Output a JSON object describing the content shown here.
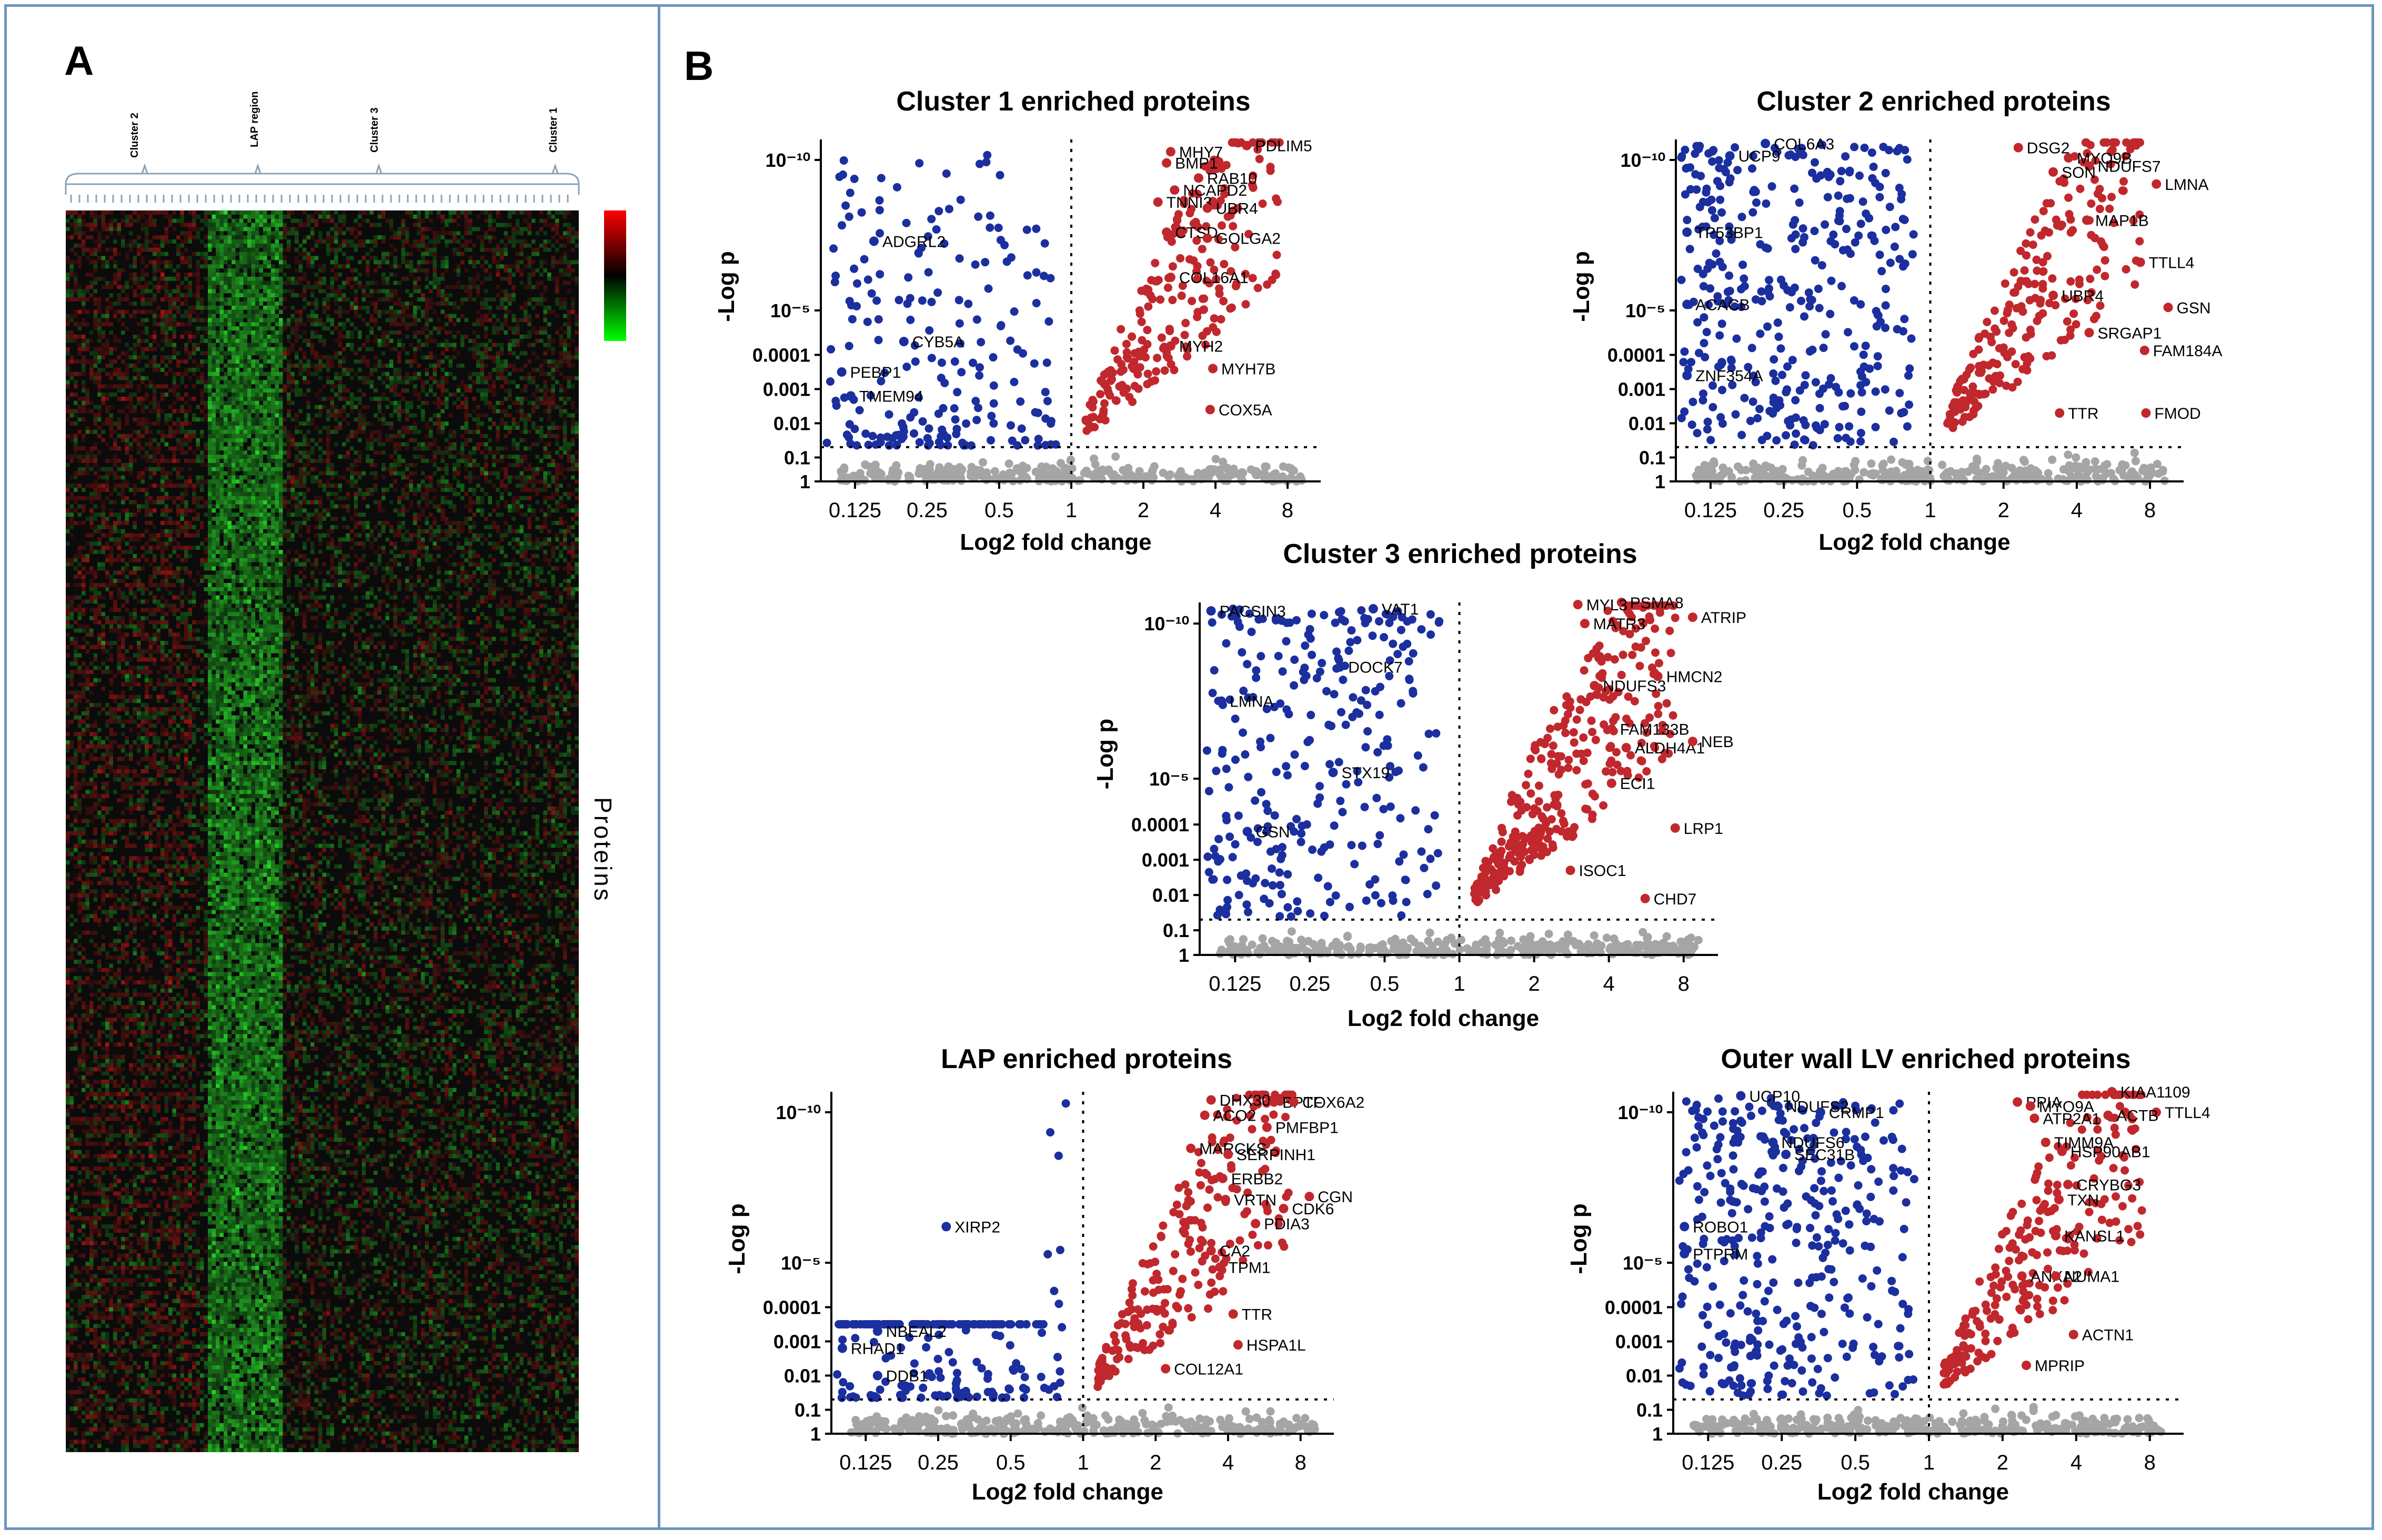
{
  "panel_a": {
    "letter": "A",
    "cluster_labels": [
      "Cluster 2",
      "LAP region",
      "Cluster 3",
      "Cluster 1"
    ],
    "row_axis_label": "Proteins",
    "color_scale": [
      "#ff0000",
      "#000000",
      "#00ff00"
    ]
  },
  "panel_b": {
    "letter": "B"
  },
  "colors": {
    "up": "#c0282d",
    "down": "#1b2f9e",
    "ns": "#a5a5a5",
    "frame": "#6f93bf"
  },
  "chart_data": [
    {
      "type": "scatter",
      "title": "Cluster 1 enriched proteins",
      "xlabel": "Log2 fold change",
      "ylabel": "-Log p",
      "x_ticks": [
        "0.125",
        "0.25",
        "0.5",
        "1",
        "2",
        "4",
        "8"
      ],
      "y_ticks": [
        "10⁻¹⁰",
        "10⁻⁵",
        "0.0001",
        "0.001",
        "0.01",
        "0.1",
        "1"
      ],
      "xlim": [
        0.09,
        11
      ],
      "ylim_log10p": [
        0,
        11
      ],
      "thresholds": {
        "fold_change": 1,
        "p": 0.05
      },
      "labeled_points": [
        {
          "name": "PDLIM5",
          "x": 5.4,
          "y": 10.7,
          "dir": "up"
        },
        {
          "name": "MHY7",
          "x": 2.6,
          "y": 10.4,
          "dir": "up"
        },
        {
          "name": "BMP1",
          "x": 2.5,
          "y": 9.9,
          "dir": "up"
        },
        {
          "name": "RAB10",
          "x": 3.4,
          "y": 9.4,
          "dir": "up"
        },
        {
          "name": "NCAPD2",
          "x": 2.7,
          "y": 9.0,
          "dir": "up"
        },
        {
          "name": "TNNI3",
          "x": 2.3,
          "y": 8.6,
          "dir": "up"
        },
        {
          "name": "UBR4",
          "x": 3.7,
          "y": 8.4,
          "dir": "up"
        },
        {
          "name": "CTSD",
          "x": 2.5,
          "y": 7.6,
          "dir": "up"
        },
        {
          "name": "GOLGA2",
          "x": 3.7,
          "y": 7.4,
          "dir": "up"
        },
        {
          "name": "COL16A1",
          "x": 2.6,
          "y": 6.1,
          "dir": "up"
        },
        {
          "name": "MYH2",
          "x": 2.6,
          "y": 4.2,
          "dir": "up"
        },
        {
          "name": "MYH7B",
          "x": 3.9,
          "y": 3.6,
          "dir": "up"
        },
        {
          "name": "COX5A",
          "x": 3.8,
          "y": 2.4,
          "dir": "up"
        },
        {
          "name": "ADGRL2",
          "x": 0.15,
          "y": 7.3,
          "dir": "down"
        },
        {
          "name": "CYB5A",
          "x": 0.2,
          "y": 4.3,
          "dir": "down"
        },
        {
          "name": "PEBP1",
          "x": 0.11,
          "y": 3.5,
          "dir": "down"
        },
        {
          "name": "TMEM94",
          "x": 0.12,
          "y": 2.8,
          "dir": "down"
        }
      ]
    },
    {
      "type": "scatter",
      "title": "Cluster 2 enriched proteins",
      "xlabel": "Log2 fold change",
      "ylabel": "-Log p",
      "x_ticks": [
        "0.125",
        "0.25",
        "0.5",
        "1",
        "2",
        "4",
        "8"
      ],
      "y_ticks": [
        "10⁻¹⁰",
        "10⁻⁵",
        "0.0001",
        "0.001",
        "0.01",
        "0.1",
        "1"
      ],
      "xlim": [
        0.09,
        11
      ],
      "ylim_log10p": [
        0,
        11
      ],
      "thresholds": {
        "fold_change": 1,
        "p": 0.05
      },
      "labeled_points": [
        {
          "name": "DSG2",
          "x": 2.3,
          "y": 10.6,
          "dir": "up"
        },
        {
          "name": "MYO9B",
          "x": 3.7,
          "y": 10.1,
          "dir": "up"
        },
        {
          "name": "NDUFS7",
          "x": 4.5,
          "y": 9.8,
          "dir": "up"
        },
        {
          "name": "SON",
          "x": 3.2,
          "y": 9.6,
          "dir": "up"
        },
        {
          "name": "LMNA",
          "x": 8.5,
          "y": 9.2,
          "dir": "up"
        },
        {
          "name": "MAP1B",
          "x": 4.4,
          "y": 8.0,
          "dir": "up"
        },
        {
          "name": "TTLL4",
          "x": 7.3,
          "y": 6.6,
          "dir": "up"
        },
        {
          "name": "UBR4",
          "x": 3.2,
          "y": 5.5,
          "dir": "up"
        },
        {
          "name": "GSN",
          "x": 9.5,
          "y": 5.1,
          "dir": "up"
        },
        {
          "name": "SRGAP1",
          "x": 4.5,
          "y": 4.5,
          "dir": "up"
        },
        {
          "name": "FAM184A",
          "x": 7.6,
          "y": 4.1,
          "dir": "up"
        },
        {
          "name": "TTR",
          "x": 3.4,
          "y": 2.3,
          "dir": "up"
        },
        {
          "name": "FMOD",
          "x": 7.7,
          "y": 2.3,
          "dir": "up"
        },
        {
          "name": "COL6A3",
          "x": 0.21,
          "y": 10.8,
          "dir": "down"
        },
        {
          "name": "UCP9",
          "x": 0.15,
          "y": 10.2,
          "dir": "down"
        },
        {
          "name": "TP53BP1",
          "x": 0.1,
          "y": 7.6,
          "dir": "down"
        },
        {
          "name": "ACACB",
          "x": 0.1,
          "y": 5.2,
          "dir": "down"
        },
        {
          "name": "ZNF354A",
          "x": 0.1,
          "y": 3.4,
          "dir": "down"
        }
      ]
    },
    {
      "type": "scatter",
      "title": "Cluster 3 enriched proteins",
      "xlabel": "Log2 fold change",
      "ylabel": "-Log p",
      "x_ticks": [
        "0.125",
        "0.25",
        "0.5",
        "1",
        "2",
        "4",
        "8"
      ],
      "y_ticks": [
        "10⁻¹⁰",
        "10⁻⁵",
        "0.0001",
        "0.001",
        "0.01",
        "0.1",
        "1"
      ],
      "xlim": [
        0.09,
        11
      ],
      "ylim_log10p": [
        0,
        11
      ],
      "thresholds": {
        "fold_change": 1,
        "p": 0.05
      },
      "labeled_points": [
        {
          "name": "PSMA8",
          "x": 4.5,
          "y": 11.2,
          "dir": "up"
        },
        {
          "name": "MYL3",
          "x": 3.0,
          "y": 10.9,
          "dir": "up"
        },
        {
          "name": "ATRIP",
          "x": 8.7,
          "y": 10.3,
          "dir": "up"
        },
        {
          "name": "MATR3",
          "x": 3.2,
          "y": 10.0,
          "dir": "up"
        },
        {
          "name": "HMCN2",
          "x": 6.3,
          "y": 8.3,
          "dir": "up"
        },
        {
          "name": "NDUFS3",
          "x": 3.5,
          "y": 8.0,
          "dir": "up"
        },
        {
          "name": "FAM133B",
          "x": 4.1,
          "y": 6.6,
          "dir": "up"
        },
        {
          "name": "ALDH4A1",
          "x": 4.7,
          "y": 6.0,
          "dir": "up"
        },
        {
          "name": "NEB",
          "x": 8.7,
          "y": 6.2,
          "dir": "up"
        },
        {
          "name": "ECI1",
          "x": 4.1,
          "y": 4.9,
          "dir": "up"
        },
        {
          "name": "LRP1",
          "x": 7.4,
          "y": 3.9,
          "dir": "up"
        },
        {
          "name": "ISOC1",
          "x": 2.8,
          "y": 2.7,
          "dir": "up"
        },
        {
          "name": "CHD7",
          "x": 5.6,
          "y": 1.9,
          "dir": "up"
        },
        {
          "name": "PACSIN3",
          "x": 0.1,
          "y": 10.6,
          "dir": "down"
        },
        {
          "name": "VAT1",
          "x": 0.45,
          "y": 10.7,
          "dir": "down"
        },
        {
          "name": "DOCK7",
          "x": 0.33,
          "y": 8.6,
          "dir": "down"
        },
        {
          "name": "LMNA",
          "x": 0.11,
          "y": 7.5,
          "dir": "down"
        },
        {
          "name": "STX19",
          "x": 0.31,
          "y": 5.2,
          "dir": "down"
        },
        {
          "name": "GSN",
          "x": 0.14,
          "y": 3.8,
          "dir": "down"
        }
      ]
    },
    {
      "type": "scatter",
      "title": "LAP enriched proteins",
      "xlabel": "Log2 fold change",
      "ylabel": "-Log p",
      "x_ticks": [
        "0.125",
        "0.25",
        "0.5",
        "1",
        "2",
        "4",
        "8"
      ],
      "y_ticks": [
        "10⁻¹⁰",
        "10⁻⁵",
        "0.0001",
        "0.001",
        "0.01",
        "0.1",
        "1"
      ],
      "xlim": [
        0.09,
        11
      ],
      "ylim_log10p": [
        0,
        11
      ],
      "thresholds": {
        "fold_change": 1,
        "p": 0.05
      },
      "labeled_points": [
        {
          "name": "DHX30",
          "x": 3.4,
          "y": 10.6,
          "dir": "up"
        },
        {
          "name": "BPTF",
          "x": 6.2,
          "y": 10.5,
          "dir": "up"
        },
        {
          "name": "COX6A2",
          "x": 7.5,
          "y": 10.5,
          "dir": "up"
        },
        {
          "name": "ACO2",
          "x": 3.2,
          "y": 9.9,
          "dir": "up"
        },
        {
          "name": "PMFBP1",
          "x": 5.8,
          "y": 9.5,
          "dir": "up"
        },
        {
          "name": "MARCKS",
          "x": 2.8,
          "y": 8.8,
          "dir": "up"
        },
        {
          "name": "SERPINH1",
          "x": 4.0,
          "y": 8.6,
          "dir": "up"
        },
        {
          "name": "ERBB2",
          "x": 3.8,
          "y": 7.8,
          "dir": "up"
        },
        {
          "name": "CGN",
          "x": 8.7,
          "y": 7.2,
          "dir": "up"
        },
        {
          "name": "VRTN",
          "x": 3.9,
          "y": 7.1,
          "dir": "up"
        },
        {
          "name": "CDK6",
          "x": 6.8,
          "y": 6.8,
          "dir": "up"
        },
        {
          "name": "PDIA3",
          "x": 5.2,
          "y": 6.3,
          "dir": "up"
        },
        {
          "name": "CA2",
          "x": 3.4,
          "y": 5.4,
          "dir": "up"
        },
        {
          "name": "TPM1",
          "x": 3.7,
          "y": 4.9,
          "dir": "up"
        },
        {
          "name": "TTR",
          "x": 4.2,
          "y": 3.8,
          "dir": "up"
        },
        {
          "name": "HSPA1L",
          "x": 4.4,
          "y": 2.9,
          "dir": "up"
        },
        {
          "name": "COL12A1",
          "x": 2.2,
          "y": 2.2,
          "dir": "up"
        },
        {
          "name": "XIRP2",
          "x": 0.27,
          "y": 6.2,
          "dir": "down"
        },
        {
          "name": "NBEAL2",
          "x": 0.14,
          "y": 3.3,
          "dir": "down"
        },
        {
          "name": "RHAD1",
          "x": 0.1,
          "y": 2.8,
          "dir": "down"
        },
        {
          "name": "DDB1",
          "x": 0.14,
          "y": 2.0,
          "dir": "down"
        }
      ]
    },
    {
      "type": "scatter",
      "title": "Outer wall LV enriched proteins",
      "xlabel": "Log2 fold change",
      "ylabel": "-Log p",
      "x_ticks": [
        "0.125",
        "0.25",
        "0.5",
        "1",
        "2",
        "4",
        "8"
      ],
      "y_ticks": [
        "10⁻¹⁰",
        "10⁻⁵",
        "0.0001",
        "0.001",
        "0.01",
        "0.1",
        "1"
      ],
      "xlim": [
        0.09,
        11
      ],
      "ylim_log10p": [
        0,
        11
      ],
      "thresholds": {
        "fold_change": 1,
        "p": 0.05
      },
      "labeled_points": [
        {
          "name": "KIAA1109",
          "x": 5.6,
          "y": 11.1,
          "dir": "up"
        },
        {
          "name": "PPIA",
          "x": 2.3,
          "y": 10.5,
          "dir": "up"
        },
        {
          "name": "MYO9A",
          "x": 2.6,
          "y": 10.3,
          "dir": "up"
        },
        {
          "name": "TTLL4",
          "x": 8.5,
          "y": 10.0,
          "dir": "up"
        },
        {
          "name": "ACTB",
          "x": 5.4,
          "y": 9.9,
          "dir": "up"
        },
        {
          "name": "ATP2A1",
          "x": 2.7,
          "y": 9.8,
          "dir": "up"
        },
        {
          "name": "TIMM9A",
          "x": 3.0,
          "y": 9.0,
          "dir": "up"
        },
        {
          "name": "HSP90AB1",
          "x": 3.5,
          "y": 8.7,
          "dir": "up"
        },
        {
          "name": "CRYBG3",
          "x": 3.7,
          "y": 7.6,
          "dir": "up"
        },
        {
          "name": "TXN",
          "x": 3.4,
          "y": 7.1,
          "dir": "up"
        },
        {
          "name": "KANSL1",
          "x": 3.3,
          "y": 5.9,
          "dir": "up"
        },
        {
          "name": "ANXA2",
          "x": 2.4,
          "y": 4.7,
          "dir": "up"
        },
        {
          "name": "NUMA1",
          "x": 3.3,
          "y": 4.7,
          "dir": "up"
        },
        {
          "name": "ACTN1",
          "x": 3.9,
          "y": 3.2,
          "dir": "up"
        },
        {
          "name": "MPRIP",
          "x": 2.5,
          "y": 2.3,
          "dir": "up"
        },
        {
          "name": "UCP10",
          "x": 0.17,
          "y": 10.8,
          "dir": "down"
        },
        {
          "name": "NDUFS2",
          "x": 0.24,
          "y": 10.3,
          "dir": "down"
        },
        {
          "name": "CRMP1",
          "x": 0.36,
          "y": 10.0,
          "dir": "down"
        },
        {
          "name": "NDUFS6",
          "x": 0.23,
          "y": 9.0,
          "dir": "down"
        },
        {
          "name": "SEC31B",
          "x": 0.26,
          "y": 8.6,
          "dir": "down"
        },
        {
          "name": "ROBO1",
          "x": 0.1,
          "y": 6.2,
          "dir": "down"
        },
        {
          "name": "PTPRM",
          "x": 0.1,
          "y": 5.3,
          "dir": "down"
        }
      ]
    }
  ]
}
